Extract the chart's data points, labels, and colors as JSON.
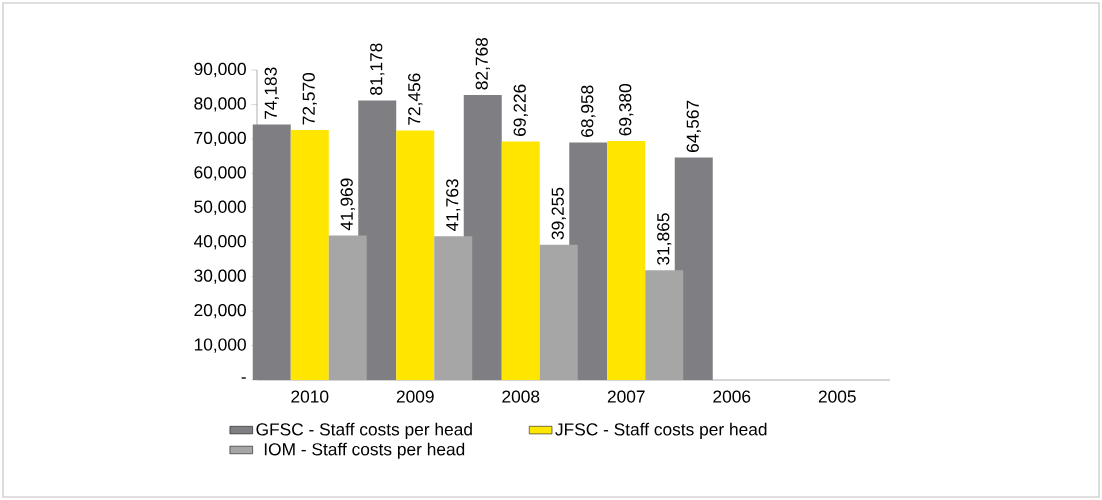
{
  "chart_data": {
    "type": "bar",
    "categories": [
      "2010",
      "2009",
      "2008",
      "2007",
      "2006",
      "2005"
    ],
    "series": [
      {
        "name": "GFSC - Staff costs per head",
        "color": "#7f7e82",
        "values": [
          74183,
          81178,
          82768,
          68958,
          64567,
          null
        ],
        "value_labels": [
          "74,183",
          "81,178",
          "82,768",
          "68,958",
          "64,567",
          null
        ]
      },
      {
        "name": "JFSC -  Staff costs per head",
        "color": "#ffe600",
        "values": [
          72570,
          72456,
          69226,
          69380,
          null,
          null
        ],
        "value_labels": [
          "72,570",
          "72,456",
          "69,226",
          "69,380",
          null,
          null
        ]
      },
      {
        "name": "IOM -  Staff costs per head",
        "color": "#a6a6a6",
        "values": [
          41969,
          41763,
          39255,
          31865,
          null,
          null
        ],
        "value_labels": [
          "41,969",
          "41,763",
          "39,255",
          "31,865",
          null,
          null
        ]
      }
    ],
    "ylim": [
      0,
      90000
    ],
    "yticks": [
      {
        "value": 0,
        "label": "-"
      },
      {
        "value": 10000,
        "label": "10,000"
      },
      {
        "value": 20000,
        "label": "20,000"
      },
      {
        "value": 30000,
        "label": "30,000"
      },
      {
        "value": 40000,
        "label": "40,000"
      },
      {
        "value": 50000,
        "label": "50,000"
      },
      {
        "value": 60000,
        "label": "60,000"
      },
      {
        "value": 70000,
        "label": "70,000"
      },
      {
        "value": 80000,
        "label": "80,000"
      },
      {
        "value": 90000,
        "label": "90,000"
      }
    ],
    "grid": false,
    "legend": "bottom"
  }
}
